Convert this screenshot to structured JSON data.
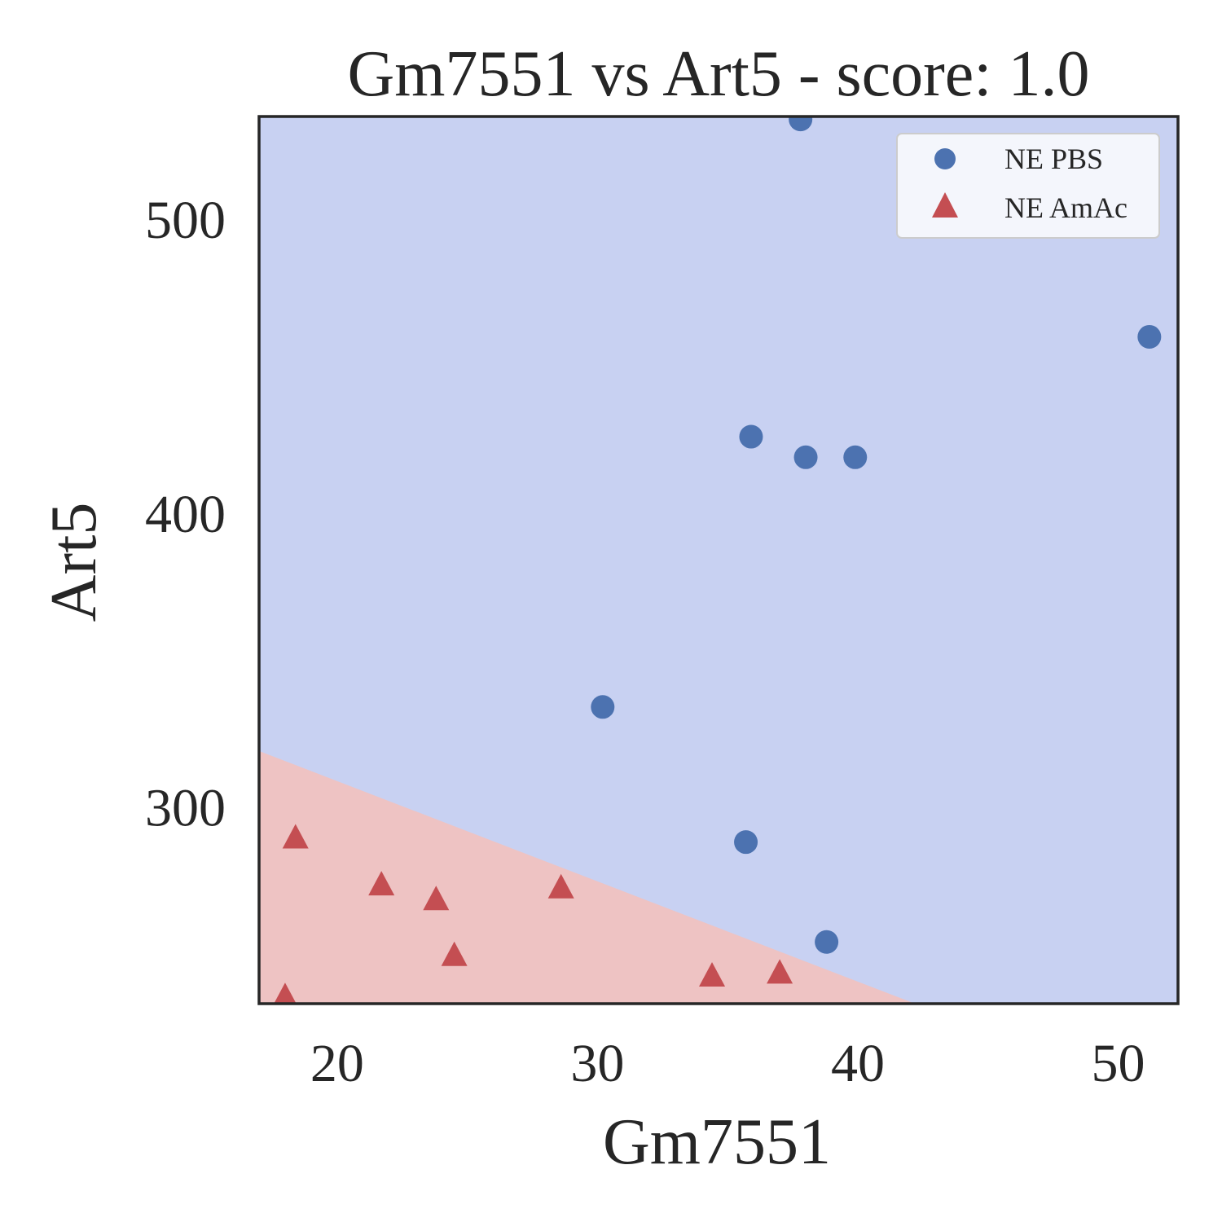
{
  "chart_data": {
    "type": "scatter",
    "title": "Gm7551 vs Art5 - score: 1.0",
    "xlabel": "Gm7551",
    "ylabel": "Art5",
    "xlim": [
      17,
      52.3
    ],
    "ylim": [
      233,
      535
    ],
    "x_ticks": [
      20,
      30,
      40,
      50
    ],
    "y_ticks": [
      300,
      400,
      500
    ],
    "grid": false,
    "legend_position": "top-right",
    "background_regions": [
      {
        "class": "NE PBS",
        "color": "#c8d1f2"
      },
      {
        "class": "NE AmAc",
        "color": "#eec3c3"
      }
    ],
    "decision_boundary": [
      [
        17,
        319
      ],
      [
        42.2,
        233
      ]
    ],
    "series": [
      {
        "name": "NE PBS",
        "marker": "circle",
        "color": "#4c72b0",
        "points": [
          [
            37.8,
            534
          ],
          [
            51.2,
            460
          ],
          [
            35.9,
            426
          ],
          [
            38.0,
            419
          ],
          [
            39.9,
            419
          ],
          [
            30.2,
            334
          ],
          [
            35.7,
            288
          ],
          [
            38.8,
            254
          ]
        ]
      },
      {
        "name": "NE AmAc",
        "marker": "triangle",
        "color": "#c44e52",
        "points": [
          [
            18.4,
            289
          ],
          [
            21.7,
            273
          ],
          [
            23.8,
            268
          ],
          [
            24.5,
            249
          ],
          [
            28.6,
            272
          ],
          [
            34.4,
            242
          ],
          [
            37.0,
            243
          ],
          [
            18.0,
            235
          ]
        ]
      }
    ]
  }
}
